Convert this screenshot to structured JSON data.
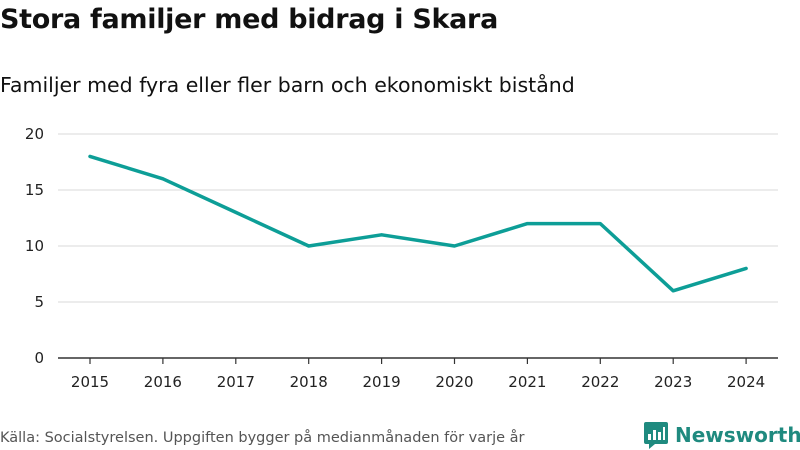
{
  "header": {
    "title": "Stora familjer med bidrag i Skara",
    "subtitle": "Familjer med fyra eller fler barn och ekonomiskt bistånd"
  },
  "footer": {
    "source": "Källa: Socialstyrelsen. Uppgiften bygger på medianmånaden för varje år",
    "brand": "Newsworthy"
  },
  "colors": {
    "line": "#0d9e97",
    "brand": "#1f8a7f",
    "grid": "#d9d9d9",
    "axis": "#333333"
  },
  "chart_data": {
    "type": "line",
    "title": "Stora familjer med bidrag i Skara",
    "subtitle": "Familjer med fyra eller fler barn och ekonomiskt bistånd",
    "xlabel": "",
    "ylabel": "",
    "categories": [
      "2015",
      "2016",
      "2017",
      "2018",
      "2019",
      "2020",
      "2021",
      "2022",
      "2023",
      "2024"
    ],
    "series": [
      {
        "name": "Familjer",
        "values": [
          18,
          16,
          13,
          10,
          11,
          10,
          12,
          12,
          6,
          8
        ]
      }
    ],
    "ylim": [
      0,
      20
    ],
    "yticks": [
      0,
      5,
      10,
      15,
      20
    ],
    "grid": true,
    "legend": "none"
  }
}
